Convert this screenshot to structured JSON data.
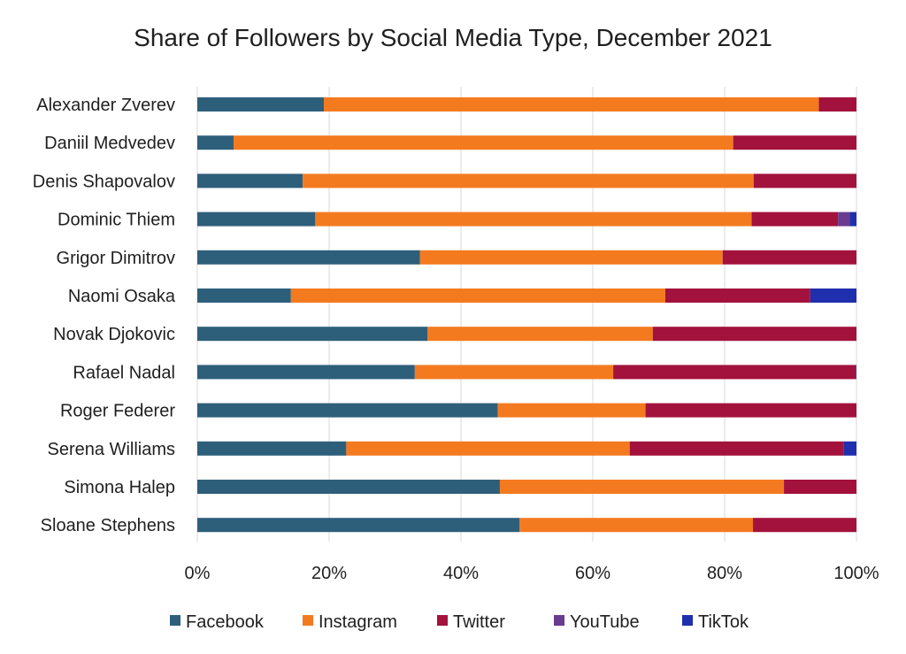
{
  "chart_data": {
    "type": "bar",
    "orientation": "horizontal",
    "stacked": "percent",
    "title": "Share of Followers by Social Media Type, December 2021",
    "xlabel": "",
    "ylabel": "",
    "xlim": [
      0,
      100
    ],
    "x_ticks": [
      "0%",
      "20%",
      "40%",
      "60%",
      "80%",
      "100%"
    ],
    "grid": true,
    "legend_position": "bottom",
    "categories": [
      "Alexander Zverev",
      "Daniil Medvedev",
      "Denis Shapovalov",
      "Dominic Thiem",
      "Grigor Dimitrov",
      "Naomi Osaka",
      "Novak Djokovic",
      "Rafael Nadal",
      "Roger Federer",
      "Serena Williams",
      "Simona Halep",
      "Sloane Stephens"
    ],
    "series": [
      {
        "name": "Facebook",
        "color": "#2e5f7a",
        "values": [
          19.2,
          5.5,
          16.0,
          17.9,
          33.8,
          14.2,
          34.9,
          33.0,
          45.6,
          22.6,
          45.9,
          48.9
        ]
      },
      {
        "name": "Instagram",
        "color": "#f47a20",
        "values": [
          75.1,
          75.8,
          68.4,
          66.2,
          45.9,
          56.8,
          34.2,
          30.1,
          22.4,
          43.0,
          43.1,
          35.4
        ]
      },
      {
        "name": "Twitter",
        "color": "#a3123d",
        "values": [
          5.7,
          18.7,
          15.6,
          13.1,
          20.3,
          22.0,
          30.9,
          36.8,
          32.0,
          32.5,
          11.0,
          15.7
        ]
      },
      {
        "name": "YouTube",
        "color": "#6a3b8f",
        "values": [
          0,
          0,
          0,
          1.8,
          0,
          0,
          0,
          0,
          0,
          0,
          0,
          0
        ]
      },
      {
        "name": "TikTok",
        "color": "#1f2fae",
        "values": [
          0,
          0,
          0,
          1.0,
          0,
          7.0,
          0,
          0.1,
          0,
          1.9,
          0,
          0
        ]
      }
    ]
  }
}
